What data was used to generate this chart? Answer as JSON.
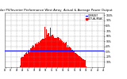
{
  "title": "Solar PV/Inverter Performance West Array  Actual & Average Power Output",
  "bar_color": "#FF0000",
  "avg_line_color": "#0000FF",
  "background_color": "#FFFFFF",
  "plot_bg_color": "#FFFFFF",
  "grid_color": "#888888",
  "num_points": 288,
  "avg_value": 0.32,
  "legend_labels": [
    "CURRENT",
    "ACTUAL/PEAK"
  ],
  "legend_colors": [
    "#0000FF",
    "#FF0000"
  ],
  "ylim_max": 1.05,
  "ytick_labels": [
    "10%",
    "20%",
    "30%",
    "40%",
    "50%",
    "60%",
    "70%",
    "80%",
    "90%",
    "100%"
  ],
  "ytick_vals": [
    0.1,
    0.2,
    0.3,
    0.4,
    0.5,
    0.6,
    0.7,
    0.8,
    0.9,
    1.0
  ]
}
